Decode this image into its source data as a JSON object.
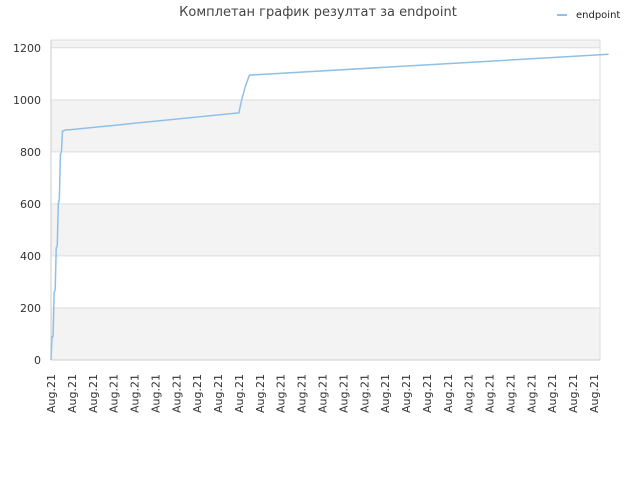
{
  "chart_data": {
    "type": "line",
    "title": "Комплетан график резултат за endpoint",
    "xlabel": "",
    "ylabel": "",
    "ylim": [
      0,
      1230
    ],
    "yticks": [
      0,
      200,
      400,
      600,
      800,
      1000,
      1200
    ],
    "x_tick_labels": [
      "Aug.21",
      "Aug.21",
      "Aug.21",
      "Aug.21",
      "Aug.21",
      "Aug.21",
      "Aug.21",
      "Aug.21",
      "Aug.21",
      "Aug.21",
      "Aug.21",
      "Aug.21",
      "Aug.21",
      "Aug.21",
      "Aug.21",
      "Aug.21",
      "Aug.21",
      "Aug.21",
      "Aug.21",
      "Aug.21",
      "Aug.21",
      "Aug.21",
      "Aug.21",
      "Aug.21",
      "Aug.21",
      "Aug.21",
      "Aug.21"
    ],
    "x_tick_count": 27,
    "grid": true,
    "background_bands": true,
    "legend_position": "top-right",
    "colors": {
      "line": "#8fc0ea",
      "band": "#f3f3f3",
      "grid": "#dddddd"
    },
    "series": [
      {
        "name": "endpoint",
        "x": [
          0,
          0.05,
          0.1,
          0.15,
          0.2,
          0.25,
          0.3,
          0.35,
          0.4,
          0.45,
          0.5,
          0.55,
          0.6,
          0.65,
          0.75,
          0.9,
          9.0,
          9.1,
          9.3,
          9.5,
          26.7
        ],
        "values": [
          0,
          90,
          90,
          260,
          270,
          430,
          440,
          600,
          620,
          790,
          800,
          880,
          880,
          883,
          885,
          885,
          950,
          990,
          1050,
          1095,
          1175
        ]
      }
    ]
  }
}
